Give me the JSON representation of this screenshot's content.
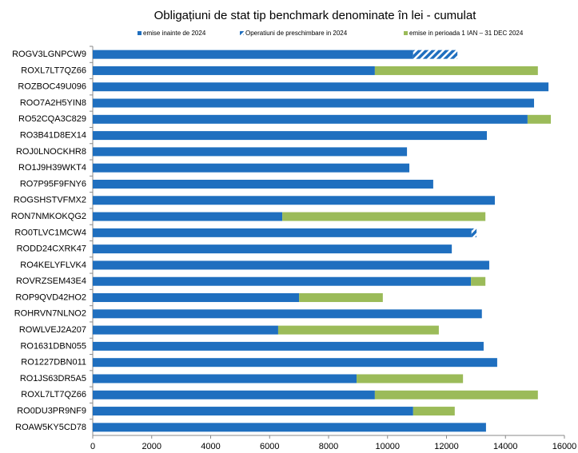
{
  "chart_data": {
    "type": "stacked_barh",
    "title": "Obligațiuni de stat tip benchmark denominate în lei - cumulat",
    "categories": [
      "ROGV3LGNPCW9",
      "ROXL7LT7QZ66",
      "ROZBOC49U096",
      "ROO7A2H5YIN8",
      "RO52CQA3C829",
      "RO3B41D8EX14",
      "ROJ0LNOCKHR8",
      "RO1J9H39WKT4",
      "RO7P95F9FNY6",
      "ROGSHSTVFMX2",
      "RON7NMKOKQG2",
      "RO0TLVC1MCW4",
      "RODD24CXRK47",
      "RO4KELYFLVK4",
      "ROVRZSEM43E4",
      "ROP9QVD42HO2",
      "ROHRVN7NLNO2",
      "ROWLVEJ2A207",
      "RO1631DBN055",
      "RO1227DBN011",
      "RO1JS63DR5A5",
      "ROXL7LT7QZ66",
      "RO0DU3PR9NF9",
      "ROAW5KY5CD78"
    ],
    "series": [
      {
        "name": "emise inainte de 2024",
        "color": "#1f6fbf",
        "values": [
          10870,
          9570,
          15460,
          14970,
          14750,
          13370,
          10660,
          10740,
          11550,
          13640,
          6430,
          12850,
          12180,
          13450,
          12830,
          7000,
          13200,
          6290,
          13260,
          13720,
          8950,
          9570,
          10870,
          13340
        ]
      },
      {
        "name": "Operatiuni de preschimbare in 2024",
        "color": "#1f6fbf",
        "hatch": true,
        "values": [
          1500,
          null,
          null,
          null,
          null,
          null,
          null,
          null,
          null,
          null,
          null,
          170,
          null,
          null,
          null,
          null,
          null,
          null,
          null,
          null,
          null,
          null,
          null,
          null
        ]
      },
      {
        "name": "emise in perioada 1 IAN – 31 DEC 2024",
        "color": "#9bbb59",
        "values": [
          null,
          5530,
          null,
          null,
          790,
          null,
          null,
          null,
          null,
          null,
          6890,
          null,
          null,
          null,
          490,
          2840,
          null,
          5450,
          null,
          null,
          3610,
          5530,
          1410,
          null
        ]
      }
    ],
    "xlim": [
      0,
      16000
    ],
    "xticks": [
      0,
      2000,
      4000,
      6000,
      8000,
      10000,
      12000,
      14000,
      16000
    ]
  }
}
